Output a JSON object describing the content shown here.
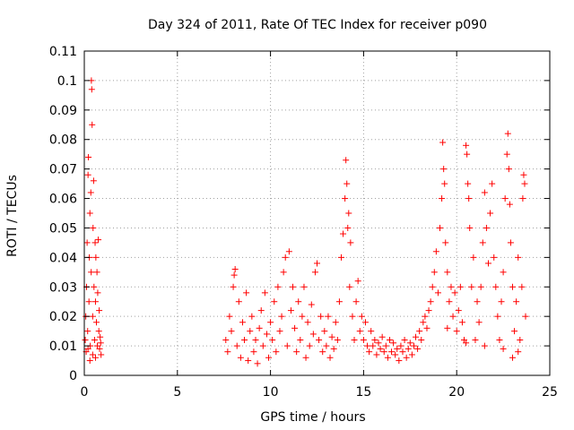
{
  "chart_data": {
    "type": "scatter",
    "title": "Day 324 of 2011, Rate Of TEC Index for receiver p090",
    "xlabel": "GPS time / hours",
    "ylabel": "ROTI / TECUs",
    "xlim": [
      0,
      25
    ],
    "ylim": [
      0,
      0.11
    ],
    "xticks": [
      0,
      5,
      10,
      15,
      20,
      25
    ],
    "xtick_labels": [
      "0",
      "5",
      "10",
      "15",
      "20",
      "25"
    ],
    "yticks": [
      0,
      0.01,
      0.02,
      0.03,
      0.04,
      0.05,
      0.06,
      0.07,
      0.08,
      0.09,
      0.1,
      0.11
    ],
    "ytick_labels": [
      "0",
      "0.01",
      "0.02",
      "0.03",
      "0.04",
      "0.05",
      "0.06",
      "0.07",
      "0.08",
      "0.09",
      "0.1",
      "0.11"
    ],
    "grid": true,
    "marker": "+",
    "color": "#ff0000",
    "series": [
      {
        "points": [
          [
            0.05,
            0.012
          ],
          [
            0.08,
            0.02
          ],
          [
            0.1,
            0.008
          ],
          [
            0.12,
            0.03
          ],
          [
            0.15,
            0.045
          ],
          [
            0.18,
            0.015
          ],
          [
            0.2,
            0.068
          ],
          [
            0.22,
            0.074
          ],
          [
            0.25,
            0.025
          ],
          [
            0.27,
            0.04
          ],
          [
            0.3,
            0.055
          ],
          [
            0.32,
            0.01
          ],
          [
            0.35,
            0.062
          ],
          [
            0.37,
            0.035
          ],
          [
            0.38,
            0.1
          ],
          [
            0.4,
            0.097
          ],
          [
            0.42,
            0.085
          ],
          [
            0.45,
            0.02
          ],
          [
            0.47,
            0.05
          ],
          [
            0.5,
            0.066
          ],
          [
            0.52,
            0.03
          ],
          [
            0.55,
            0.012
          ],
          [
            0.58,
            0.045
          ],
          [
            0.6,
            0.025
          ],
          [
            0.62,
            0.04
          ],
          [
            0.65,
            0.018
          ],
          [
            0.68,
            0.035
          ],
          [
            0.7,
            0.01
          ],
          [
            0.72,
            0.028
          ],
          [
            0.75,
            0.046
          ],
          [
            0.78,
            0.015
          ],
          [
            0.8,
            0.022
          ],
          [
            0.82,
            0.009
          ],
          [
            0.85,
            0.013
          ],
          [
            0.88,
            0.011
          ],
          [
            0.9,
            0.007
          ],
          [
            0.3,
            0.005
          ],
          [
            0.45,
            0.007
          ],
          [
            0.6,
            0.006
          ],
          [
            0.2,
            0.009
          ],
          [
            7.6,
            0.012
          ],
          [
            7.7,
            0.008
          ],
          [
            7.8,
            0.02
          ],
          [
            7.9,
            0.015
          ],
          [
            8.0,
            0.03
          ],
          [
            8.05,
            0.034
          ],
          [
            8.1,
            0.036
          ],
          [
            8.2,
            0.01
          ],
          [
            8.3,
            0.025
          ],
          [
            8.4,
            0.006
          ],
          [
            8.5,
            0.018
          ],
          [
            8.6,
            0.012
          ],
          [
            8.7,
            0.028
          ],
          [
            8.8,
            0.005
          ],
          [
            8.9,
            0.015
          ],
          [
            9.0,
            0.02
          ],
          [
            9.1,
            0.008
          ],
          [
            9.2,
            0.012
          ],
          [
            9.3,
            0.004
          ],
          [
            9.4,
            0.016
          ],
          [
            9.5,
            0.022
          ],
          [
            9.6,
            0.01
          ],
          [
            9.7,
            0.028
          ],
          [
            9.8,
            0.014
          ],
          [
            9.9,
            0.006
          ],
          [
            10.0,
            0.018
          ],
          [
            10.1,
            0.012
          ],
          [
            10.2,
            0.025
          ],
          [
            10.3,
            0.008
          ],
          [
            10.4,
            0.03
          ],
          [
            10.5,
            0.015
          ],
          [
            10.6,
            0.02
          ],
          [
            10.7,
            0.035
          ],
          [
            10.8,
            0.04
          ],
          [
            10.9,
            0.01
          ],
          [
            11.0,
            0.042
          ],
          [
            11.1,
            0.022
          ],
          [
            11.2,
            0.03
          ],
          [
            11.3,
            0.016
          ],
          [
            11.4,
            0.008
          ],
          [
            11.5,
            0.025
          ],
          [
            11.6,
            0.012
          ],
          [
            11.7,
            0.02
          ],
          [
            11.8,
            0.03
          ],
          [
            11.9,
            0.006
          ],
          [
            12.0,
            0.018
          ],
          [
            12.1,
            0.01
          ],
          [
            12.2,
            0.024
          ],
          [
            12.3,
            0.014
          ],
          [
            12.4,
            0.035
          ],
          [
            12.5,
            0.038
          ],
          [
            12.6,
            0.012
          ],
          [
            12.7,
            0.02
          ],
          [
            12.8,
            0.008
          ],
          [
            12.9,
            0.015
          ],
          [
            13.0,
            0.01
          ],
          [
            13.1,
            0.02
          ],
          [
            13.2,
            0.006
          ],
          [
            13.3,
            0.013
          ],
          [
            13.4,
            0.009
          ],
          [
            13.5,
            0.018
          ],
          [
            13.6,
            0.012
          ],
          [
            13.7,
            0.025
          ],
          [
            13.8,
            0.04
          ],
          [
            13.9,
            0.048
          ],
          [
            14.0,
            0.06
          ],
          [
            14.05,
            0.073
          ],
          [
            14.1,
            0.065
          ],
          [
            14.15,
            0.05
          ],
          [
            14.2,
            0.055
          ],
          [
            14.25,
            0.03
          ],
          [
            14.3,
            0.045
          ],
          [
            14.4,
            0.02
          ],
          [
            14.5,
            0.012
          ],
          [
            14.6,
            0.025
          ],
          [
            14.7,
            0.032
          ],
          [
            14.8,
            0.015
          ],
          [
            14.9,
            0.02
          ],
          [
            15.0,
            0.012
          ],
          [
            15.1,
            0.018
          ],
          [
            15.2,
            0.01
          ],
          [
            15.3,
            0.008
          ],
          [
            15.4,
            0.015
          ],
          [
            15.5,
            0.01
          ],
          [
            15.6,
            0.012
          ],
          [
            15.7,
            0.007
          ],
          [
            15.8,
            0.011
          ],
          [
            15.9,
            0.009
          ],
          [
            16.0,
            0.013
          ],
          [
            16.1,
            0.008
          ],
          [
            16.2,
            0.01
          ],
          [
            16.3,
            0.006
          ],
          [
            16.4,
            0.012
          ],
          [
            16.5,
            0.008
          ],
          [
            16.6,
            0.011
          ],
          [
            16.7,
            0.007
          ],
          [
            16.8,
            0.009
          ],
          [
            16.9,
            0.005
          ],
          [
            17.0,
            0.01
          ],
          [
            17.1,
            0.008
          ],
          [
            17.2,
            0.012
          ],
          [
            17.3,
            0.006
          ],
          [
            17.4,
            0.009
          ],
          [
            17.5,
            0.011
          ],
          [
            17.6,
            0.007
          ],
          [
            17.7,
            0.01
          ],
          [
            17.8,
            0.013
          ],
          [
            17.9,
            0.009
          ],
          [
            18.0,
            0.015
          ],
          [
            18.1,
            0.012
          ],
          [
            18.2,
            0.018
          ],
          [
            18.3,
            0.02
          ],
          [
            18.4,
            0.016
          ],
          [
            18.5,
            0.022
          ],
          [
            18.6,
            0.025
          ],
          [
            18.7,
            0.03
          ],
          [
            18.8,
            0.035
          ],
          [
            18.9,
            0.042
          ],
          [
            19.0,
            0.028
          ],
          [
            19.1,
            0.05
          ],
          [
            19.2,
            0.06
          ],
          [
            19.25,
            0.079
          ],
          [
            19.3,
            0.07
          ],
          [
            19.35,
            0.065
          ],
          [
            19.4,
            0.045
          ],
          [
            19.5,
            0.035
          ],
          [
            19.6,
            0.025
          ],
          [
            19.7,
            0.03
          ],
          [
            19.8,
            0.02
          ],
          [
            19.9,
            0.028
          ],
          [
            20.0,
            0.015
          ],
          [
            20.1,
            0.022
          ],
          [
            20.2,
            0.03
          ],
          [
            20.3,
            0.018
          ],
          [
            20.4,
            0.012
          ],
          [
            20.5,
            0.078
          ],
          [
            20.55,
            0.075
          ],
          [
            20.6,
            0.065
          ],
          [
            20.65,
            0.06
          ],
          [
            20.7,
            0.05
          ],
          [
            20.8,
            0.03
          ],
          [
            20.9,
            0.04
          ],
          [
            21.0,
            0.012
          ],
          [
            21.1,
            0.025
          ],
          [
            21.2,
            0.018
          ],
          [
            21.3,
            0.03
          ],
          [
            21.4,
            0.045
          ],
          [
            21.5,
            0.062
          ],
          [
            21.6,
            0.05
          ],
          [
            21.7,
            0.038
          ],
          [
            21.8,
            0.055
          ],
          [
            21.9,
            0.065
          ],
          [
            22.0,
            0.04
          ],
          [
            22.1,
            0.03
          ],
          [
            22.2,
            0.02
          ],
          [
            22.3,
            0.012
          ],
          [
            22.4,
            0.025
          ],
          [
            22.5,
            0.035
          ],
          [
            22.6,
            0.06
          ],
          [
            22.7,
            0.075
          ],
          [
            22.75,
            0.082
          ],
          [
            22.8,
            0.07
          ],
          [
            22.85,
            0.058
          ],
          [
            22.9,
            0.045
          ],
          [
            23.0,
            0.03
          ],
          [
            23.1,
            0.015
          ],
          [
            23.2,
            0.025
          ],
          [
            23.3,
            0.04
          ],
          [
            23.4,
            0.012
          ],
          [
            23.5,
            0.03
          ],
          [
            23.55,
            0.06
          ],
          [
            23.6,
            0.068
          ],
          [
            23.65,
            0.065
          ],
          [
            23.7,
            0.02
          ],
          [
            23.3,
            0.008
          ],
          [
            23.0,
            0.006
          ],
          [
            22.5,
            0.009
          ],
          [
            21.5,
            0.01
          ],
          [
            20.5,
            0.011
          ],
          [
            19.5,
            0.016
          ]
        ]
      }
    ]
  }
}
